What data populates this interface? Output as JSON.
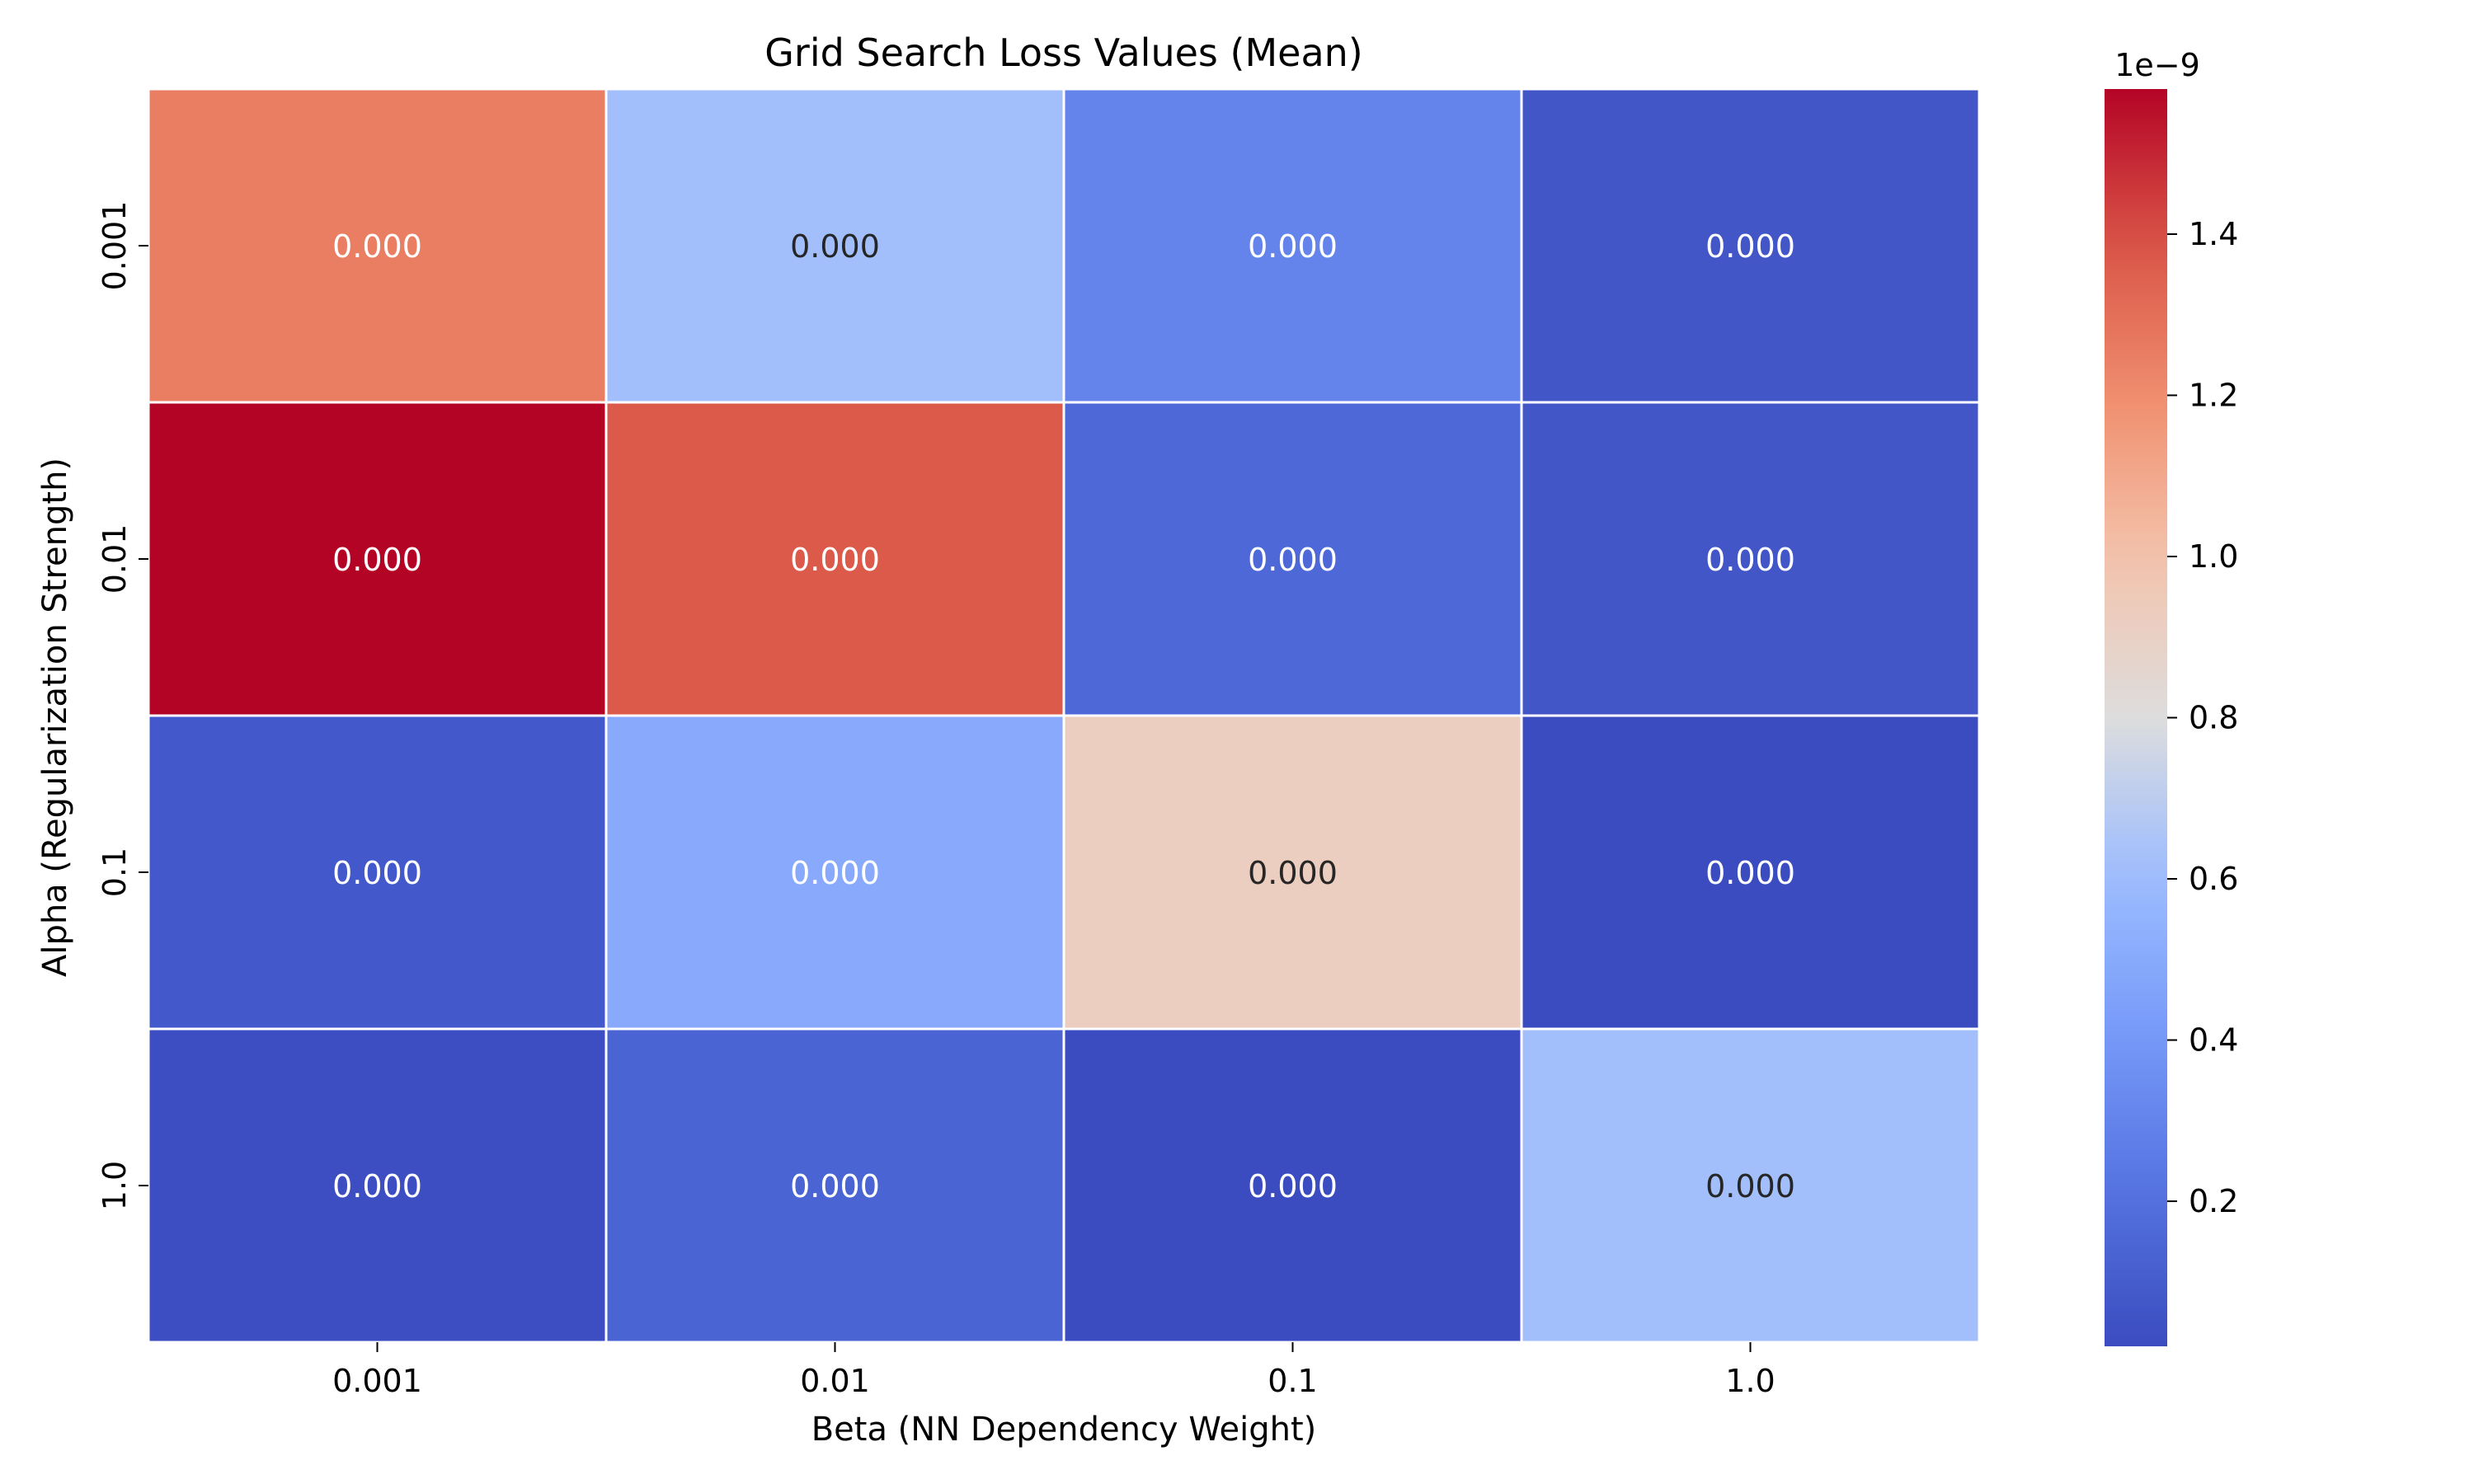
{
  "chart_data": {
    "type": "heatmap",
    "title": "Grid Search Loss Values (Mean)",
    "xlabel": "Beta (NN Dependency Weight)",
    "ylabel": "Alpha (Regularization Strength)",
    "x_categories": [
      "0.001",
      "0.01",
      "0.1",
      "1.0"
    ],
    "y_categories": [
      "0.001",
      "0.01",
      "0.1",
      "1.0"
    ],
    "values": [
      [
        1.25e-09,
        6.2e-10,
        3e-10,
        7e-11
      ],
      [
        1.58e-09,
        1.37e-09,
        1.6e-10,
        7e-11
      ],
      [
        8e-11,
        5e-10,
        9.2e-10,
        2e-11
      ],
      [
        3e-11,
        1.4e-10,
        2e-11,
        6.2e-10
      ]
    ],
    "cell_labels": [
      [
        "0.000",
        "0.000",
        "0.000",
        "0.000"
      ],
      [
        "0.000",
        "0.000",
        "0.000",
        "0.000"
      ],
      [
        "0.000",
        "0.000",
        "0.000",
        "0.000"
      ],
      [
        "0.000",
        "0.000",
        "0.000",
        "0.000"
      ]
    ],
    "colormap": "coolwarm",
    "colorbar": {
      "min": 2e-11,
      "max": 1.58e-09,
      "ticks": [
        0.2,
        0.4,
        0.6,
        0.8,
        1.0,
        1.2,
        1.4
      ],
      "tick_labels": [
        "0.2",
        "0.4",
        "0.6",
        "0.8",
        "1.0",
        "1.2",
        "1.4"
      ],
      "offset_label": "1e−9"
    }
  }
}
